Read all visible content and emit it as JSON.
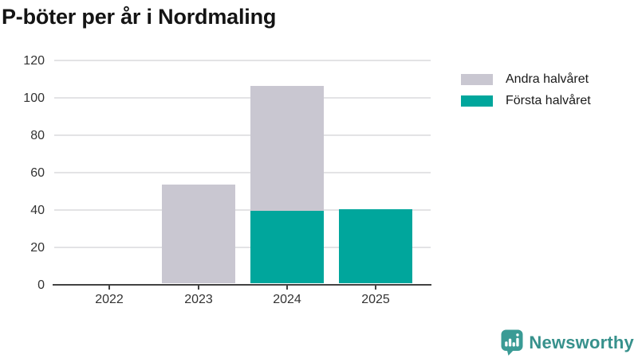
{
  "title": "P-böter per år i Nordmaling",
  "legend": [
    {
      "label": "Andra halvåret",
      "color": "#c9c7d1"
    },
    {
      "label": "Första halvåret",
      "color": "#00a69c"
    }
  ],
  "chart_data": {
    "type": "bar",
    "stacked": true,
    "title": "P-böter per år i Nordmaling",
    "categories": [
      "2022",
      "2023",
      "2024",
      "2025"
    ],
    "series": [
      {
        "name": "Första halvåret",
        "color": "#00a69c",
        "values": [
          0,
          0,
          39,
          40
        ]
      },
      {
        "name": "Andra halvåret",
        "color": "#c9c7d1",
        "values": [
          0,
          53,
          67,
          0
        ]
      }
    ],
    "totals": [
      0,
      53,
      106,
      40
    ],
    "xlabel": "",
    "ylabel": "",
    "ylim": [
      0,
      120
    ],
    "yticks": [
      0,
      20,
      40,
      60,
      80,
      100,
      120
    ],
    "grid": true,
    "legend_position": "right"
  },
  "branding": {
    "logo_text": "Newsworthy",
    "logo_icon": "bar-chart-speech-bubble-icon",
    "badge_color": "#3a9b95",
    "text_color": "#37918c"
  },
  "colors": {
    "first_half": "#00a69c",
    "second_half": "#c9c7d1",
    "gridline": "#e3e3e5",
    "axis": "#424242",
    "axis_text": "#333333",
    "title_text": "#141414"
  }
}
